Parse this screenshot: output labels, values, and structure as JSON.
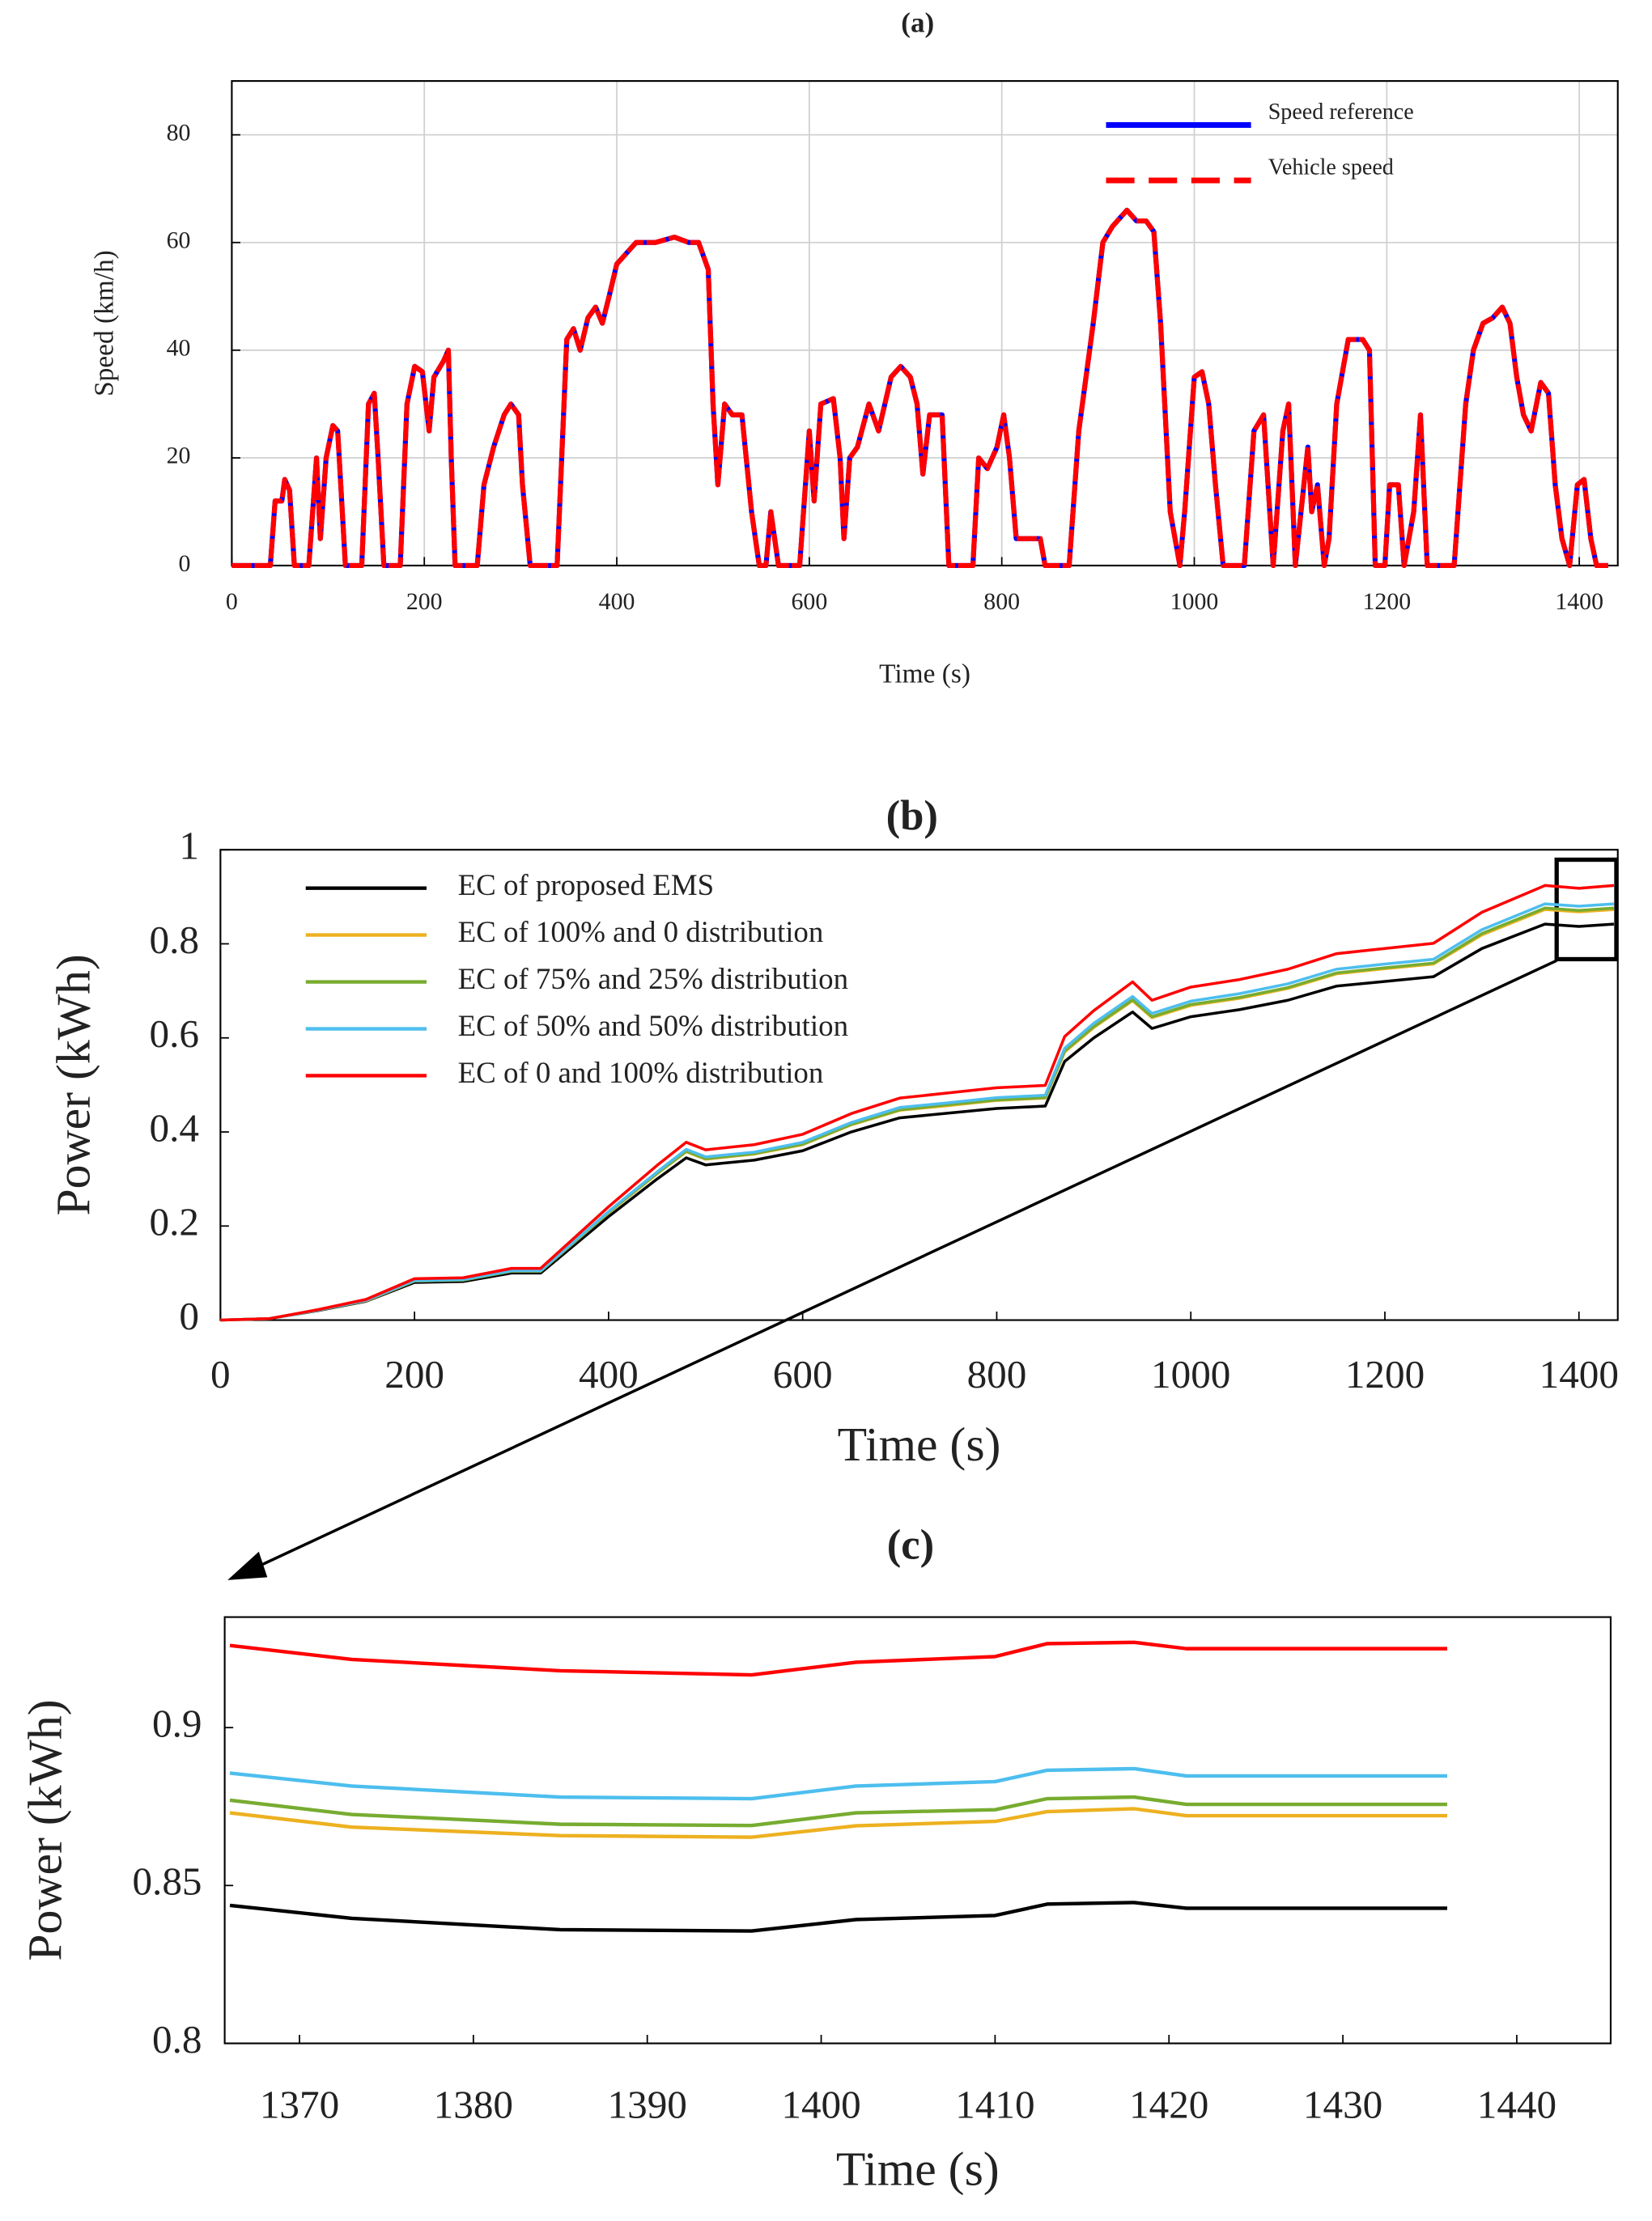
{
  "chart_data": [
    {
      "type": "line",
      "title": "(a)",
      "xlabel": "Time (s)",
      "ylabel": "Speed (km/h)",
      "x": [
        0,
        40,
        45,
        52,
        55,
        60,
        65,
        80,
        88,
        92,
        98,
        105,
        110,
        118,
        135,
        142,
        148,
        152,
        158,
        175,
        182,
        190,
        198,
        205,
        210,
        220,
        225,
        228,
        232,
        255,
        262,
        272,
        283,
        290,
        298,
        302,
        310,
        338,
        348,
        355,
        362,
        370,
        378,
        385,
        392,
        400,
        420,
        440,
        460,
        475,
        485,
        495,
        500,
        505,
        512,
        520,
        530,
        540,
        548,
        555,
        560,
        568,
        590,
        600,
        605,
        612,
        625,
        632,
        636,
        642,
        650,
        662,
        672,
        685,
        695,
        705,
        712,
        718,
        725,
        738,
        745,
        770,
        776,
        785,
        795,
        802,
        808,
        815,
        828,
        840,
        845,
        870,
        880,
        895,
        905,
        915,
        930,
        940,
        950,
        958,
        965,
        975,
        985,
        990,
        1000,
        1008,
        1015,
        1022,
        1030,
        1052,
        1062,
        1072,
        1082,
        1092,
        1098,
        1105,
        1118,
        1122,
        1128,
        1135,
        1140,
        1148,
        1160,
        1175,
        1182,
        1188,
        1198,
        1203,
        1212,
        1218,
        1228,
        1235,
        1242,
        1270,
        1282,
        1290,
        1300,
        1310,
        1320,
        1328,
        1335,
        1342,
        1350,
        1360,
        1368,
        1375,
        1382,
        1390,
        1398,
        1405,
        1412,
        1418,
        1430
      ],
      "series": [
        {
          "name": "Speed reference",
          "color": "#0000ff",
          "linestyle": "solid",
          "values": [
            0,
            0,
            12,
            12,
            16,
            14,
            0,
            0,
            20,
            5,
            20,
            26,
            25,
            0,
            0,
            30,
            32,
            20,
            0,
            0,
            30,
            37,
            36,
            25,
            35,
            38,
            40,
            20,
            0,
            0,
            15,
            22,
            28,
            30,
            28,
            15,
            0,
            0,
            42,
            44,
            40,
            46,
            48,
            45,
            50,
            56,
            60,
            60,
            61,
            60,
            60,
            55,
            30,
            15,
            30,
            28,
            28,
            10,
            0,
            0,
            10,
            0,
            0,
            25,
            12,
            30,
            31,
            20,
            5,
            20,
            22,
            30,
            25,
            35,
            37,
            35,
            30,
            17,
            28,
            28,
            0,
            0,
            20,
            18,
            22,
            28,
            20,
            5,
            5,
            5,
            0,
            0,
            25,
            45,
            60,
            63,
            66,
            64,
            64,
            62,
            45,
            10,
            0,
            10,
            35,
            36,
            30,
            15,
            0,
            0,
            25,
            28,
            0,
            25,
            30,
            0,
            22,
            10,
            15,
            0,
            5,
            30,
            42,
            42,
            40,
            0,
            0,
            15,
            15,
            0,
            10,
            28,
            0,
            0,
            30,
            40,
            45,
            46,
            48,
            45,
            35,
            28,
            25,
            34,
            32,
            15,
            5,
            0,
            15,
            16,
            5,
            0,
            0
          ]
        },
        {
          "name": "Vehicle speed",
          "color": "#ff0000",
          "linestyle": "dashed",
          "values": [
            0,
            0,
            12,
            12,
            16,
            14,
            0,
            0,
            20,
            5,
            20,
            26,
            25,
            0,
            0,
            30,
            32,
            20,
            0,
            0,
            30,
            37,
            36,
            25,
            35,
            38,
            40,
            20,
            0,
            0,
            15,
            22,
            28,
            30,
            28,
            15,
            0,
            0,
            42,
            44,
            40,
            46,
            48,
            45,
            50,
            56,
            60,
            60,
            61,
            60,
            60,
            55,
            30,
            15,
            30,
            28,
            28,
            10,
            0,
            0,
            10,
            0,
            0,
            25,
            12,
            30,
            31,
            20,
            5,
            20,
            22,
            30,
            25,
            35,
            37,
            35,
            30,
            17,
            28,
            28,
            0,
            0,
            20,
            18,
            22,
            28,
            20,
            5,
            5,
            5,
            0,
            0,
            25,
            45,
            60,
            63,
            66,
            64,
            64,
            62,
            45,
            10,
            0,
            10,
            35,
            36,
            30,
            15,
            0,
            0,
            25,
            28,
            0,
            25,
            30,
            0,
            22,
            10,
            15,
            0,
            5,
            30,
            42,
            42,
            40,
            0,
            0,
            15,
            15,
            0,
            10,
            28,
            0,
            0,
            30,
            40,
            45,
            46,
            48,
            45,
            35,
            28,
            25,
            34,
            32,
            15,
            5,
            0,
            15,
            16,
            5,
            0,
            0
          ]
        }
      ],
      "xlim": [
        0,
        1440
      ],
      "ylim": [
        0,
        90
      ],
      "xticks": [
        0,
        200,
        400,
        600,
        800,
        1000,
        1200,
        1400
      ],
      "yticks": [
        0,
        20,
        40,
        60,
        80
      ],
      "grid": true,
      "legend": "upper right"
    },
    {
      "type": "line",
      "title": "(b)",
      "xlabel": "Time (s)",
      "ylabel": "Power (kWh)",
      "x": [
        0,
        50,
        100,
        150,
        200,
        250,
        300,
        330,
        400,
        450,
        480,
        500,
        550,
        600,
        650,
        700,
        750,
        800,
        850,
        870,
        900,
        940,
        960,
        1000,
        1050,
        1100,
        1150,
        1200,
        1250,
        1300,
        1365,
        1400,
        1436
      ],
      "series": [
        {
          "name": "EC of proposed EMS",
          "color": "#000000",
          "values": [
            0,
            0.003,
            0.02,
            0.04,
            0.08,
            0.082,
            0.1,
            0.1,
            0.22,
            0.3,
            0.345,
            0.33,
            0.34,
            0.36,
            0.4,
            0.43,
            0.44,
            0.45,
            0.455,
            0.55,
            0.6,
            0.655,
            0.62,
            0.645,
            0.66,
            0.68,
            0.71,
            0.72,
            0.73,
            0.79,
            0.842,
            0.837,
            0.842
          ]
        },
        {
          "name": "EC of 100% and 0 distribution",
          "color": "#edb120",
          "values": [
            0,
            0.003,
            0.021,
            0.041,
            0.083,
            0.085,
            0.104,
            0.104,
            0.228,
            0.311,
            0.358,
            0.342,
            0.353,
            0.373,
            0.415,
            0.446,
            0.456,
            0.467,
            0.472,
            0.57,
            0.622,
            0.679,
            0.643,
            0.669,
            0.684,
            0.705,
            0.736,
            0.747,
            0.757,
            0.819,
            0.873,
            0.868,
            0.873
          ]
        },
        {
          "name": "EC of 75% and 25% distribution",
          "color": "#77ac30",
          "values": [
            0,
            0.003,
            0.021,
            0.042,
            0.083,
            0.085,
            0.104,
            0.104,
            0.229,
            0.312,
            0.359,
            0.343,
            0.354,
            0.374,
            0.416,
            0.447,
            0.458,
            0.468,
            0.473,
            0.572,
            0.624,
            0.681,
            0.645,
            0.671,
            0.686,
            0.707,
            0.738,
            0.749,
            0.759,
            0.822,
            0.876,
            0.871,
            0.876
          ]
        },
        {
          "name": "EC of 50% and 50% distribution",
          "color": "#4dbeee",
          "values": [
            0,
            0.003,
            0.021,
            0.042,
            0.084,
            0.086,
            0.105,
            0.105,
            0.231,
            0.315,
            0.363,
            0.347,
            0.357,
            0.378,
            0.42,
            0.452,
            0.462,
            0.473,
            0.478,
            0.578,
            0.631,
            0.688,
            0.652,
            0.678,
            0.694,
            0.715,
            0.746,
            0.757,
            0.767,
            0.83,
            0.885,
            0.88,
            0.885
          ]
        },
        {
          "name": "EC of 0 and 100% distribution",
          "color": "#ff0000",
          "values": [
            0,
            0.003,
            0.022,
            0.044,
            0.088,
            0.09,
            0.11,
            0.11,
            0.241,
            0.329,
            0.378,
            0.362,
            0.373,
            0.395,
            0.439,
            0.472,
            0.483,
            0.494,
            0.499,
            0.603,
            0.658,
            0.719,
            0.68,
            0.708,
            0.724,
            0.746,
            0.779,
            0.79,
            0.801,
            0.867,
            0.924,
            0.918,
            0.924
          ]
        }
      ],
      "xlim": [
        0,
        1440
      ],
      "ylim": [
        0,
        1
      ],
      "xticks": [
        0,
        200,
        400,
        600,
        800,
        1000,
        1200,
        1400
      ],
      "yticks": [
        0,
        0.2,
        0.4,
        0.6,
        0.8,
        1
      ],
      "grid": false,
      "legend": "upper left"
    },
    {
      "type": "line",
      "title": "(c)",
      "xlabel": "Time (s)",
      "ylabel": "Power (kWh)",
      "x": [
        1366,
        1373,
        1385,
        1396,
        1402,
        1410,
        1413,
        1418,
        1421,
        1436
      ],
      "series": [
        {
          "color": "#000000",
          "values": [
            0.8437,
            0.8396,
            0.836,
            0.8356,
            0.8392,
            0.8405,
            0.8441,
            0.8446,
            0.8428,
            0.8428
          ]
        },
        {
          "color": "#edb120",
          "values": [
            0.873,
            0.8685,
            0.8658,
            0.8653,
            0.8689,
            0.8703,
            0.8734,
            0.8743,
            0.8721,
            0.8721
          ]
        },
        {
          "color": "#77ac30",
          "values": [
            0.877,
            0.8725,
            0.8694,
            0.869,
            0.873,
            0.874,
            0.8775,
            0.878,
            0.8757,
            0.8757
          ]
        },
        {
          "color": "#4dbeee",
          "values": [
            0.8856,
            0.8815,
            0.878,
            0.8775,
            0.8815,
            0.8829,
            0.8865,
            0.887,
            0.8847,
            0.8847
          ]
        },
        {
          "color": "#ff0000",
          "values": [
            0.926,
            0.9216,
            0.918,
            0.9167,
            0.9207,
            0.9225,
            0.9266,
            0.927,
            0.925,
            0.925
          ]
        }
      ],
      "xlim": [
        1365.7,
        1445.4
      ],
      "ylim": [
        0.8,
        0.935
      ],
      "xticks": [
        1370,
        1380,
        1390,
        1400,
        1410,
        1420,
        1430,
        1440
      ],
      "yticks": [
        0.8,
        0.85,
        0.9
      ],
      "grid": false
    }
  ]
}
